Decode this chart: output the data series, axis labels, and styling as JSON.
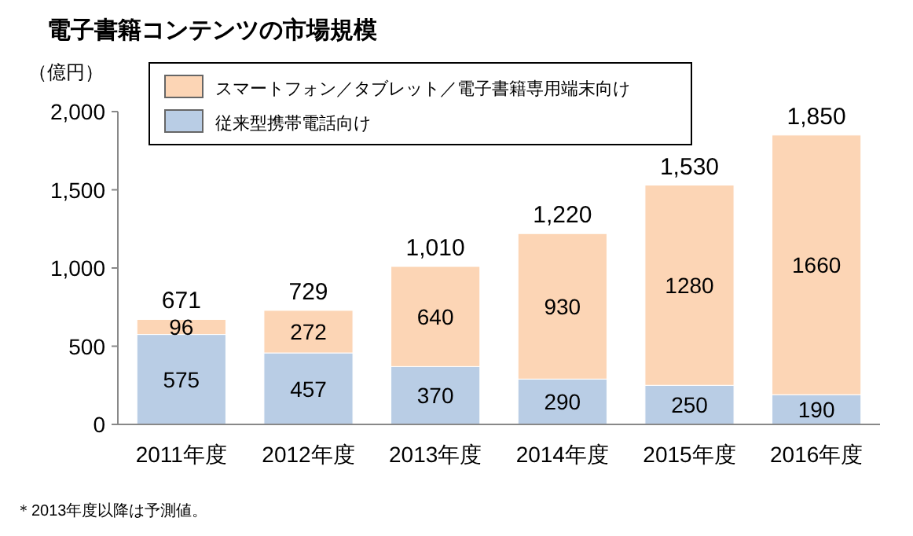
{
  "chart_data": {
    "type": "bar",
    "title": "電子書籍コンテンツの市場規模",
    "ylabel": "（億円）",
    "categories": [
      "2011年度",
      "2012年度",
      "2013年度",
      "2014年度",
      "2015年度",
      "2016年度"
    ],
    "stacked": true,
    "series": [
      {
        "name": "従来型携帯電話向け",
        "color": "#b9cde5",
        "values": [
          575,
          457,
          370,
          290,
          250,
          190
        ]
      },
      {
        "name": "スマートフォン／タブレット／電子書籍専用端末向け",
        "color": "#fcd5b5",
        "values": [
          96,
          272,
          640,
          930,
          1280,
          1660
        ]
      }
    ],
    "ylim": [
      0,
      2000
    ],
    "yticks": [
      0,
      500,
      {
        "value": 1000,
        "label": "1,000"
      },
      {
        "value": 1500,
        "label": "1,500"
      },
      {
        "value": 2000,
        "label": "2,000"
      }
    ],
    "data_labels": true,
    "totals": [
      "671",
      "729",
      "1,010",
      "1,220",
      "1,530",
      "1,850"
    ],
    "legend": "top left",
    "annotations": [
      "＊2013年度以降は予測値。"
    ]
  }
}
